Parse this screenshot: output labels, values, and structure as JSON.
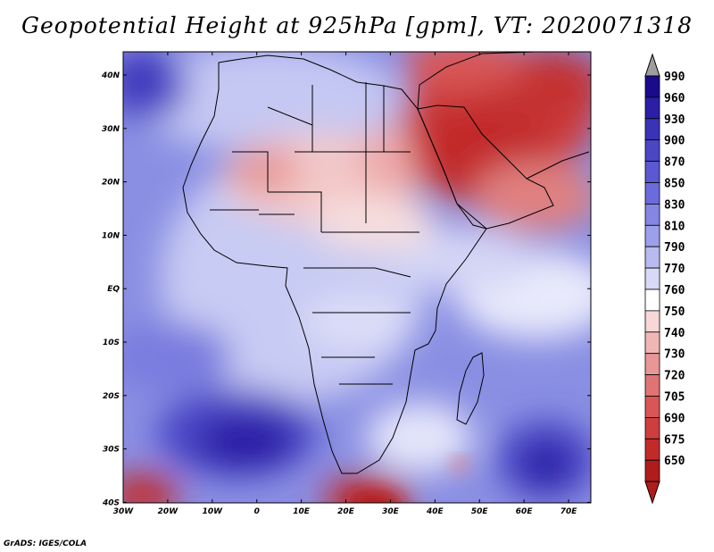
{
  "title": "Geopotential Height at 925hPa [gpm], VT: 2020071318",
  "footer": "GrADS: IGES/COLA",
  "map": {
    "region": "Africa",
    "lat_ticks": [
      "40N",
      "30N",
      "20N",
      "10N",
      "EQ",
      "10S",
      "20S",
      "30S",
      "40S"
    ],
    "lon_ticks": [
      "30W",
      "20W",
      "10W",
      "0",
      "10E",
      "20E",
      "30E",
      "40E",
      "50E",
      "60E",
      "70E"
    ]
  },
  "colorbar": {
    "levels": [
      {
        "label": "990",
        "color": "#1a0a8c"
      },
      {
        "label": "960",
        "color": "#2a1fa6"
      },
      {
        "label": "930",
        "color": "#3a33b8"
      },
      {
        "label": "900",
        "color": "#4b46c6"
      },
      {
        "label": "870",
        "color": "#5a58d2"
      },
      {
        "label": "850",
        "color": "#6b6bdc"
      },
      {
        "label": "830",
        "color": "#8486e4"
      },
      {
        "label": "810",
        "color": "#9c9fea"
      },
      {
        "label": "790",
        "color": "#b8baf0"
      },
      {
        "label": "770",
        "color": "#d8d9f6"
      },
      {
        "label": "760",
        "color": "#ffffff"
      },
      {
        "label": "750",
        "color": "#f7d7d7"
      },
      {
        "label": "740",
        "color": "#f0b6b6"
      },
      {
        "label": "730",
        "color": "#e89696"
      },
      {
        "label": "720",
        "color": "#e07474"
      },
      {
        "label": "705",
        "color": "#d85656"
      },
      {
        "label": "690",
        "color": "#cf3e3e"
      },
      {
        "label": "675",
        "color": "#c22a2a"
      },
      {
        "label": "650",
        "color": "#b01c1c"
      }
    ],
    "top_arrow_color": "#9e9e9e",
    "bottom_arrow_color": "#b01c1c"
  }
}
